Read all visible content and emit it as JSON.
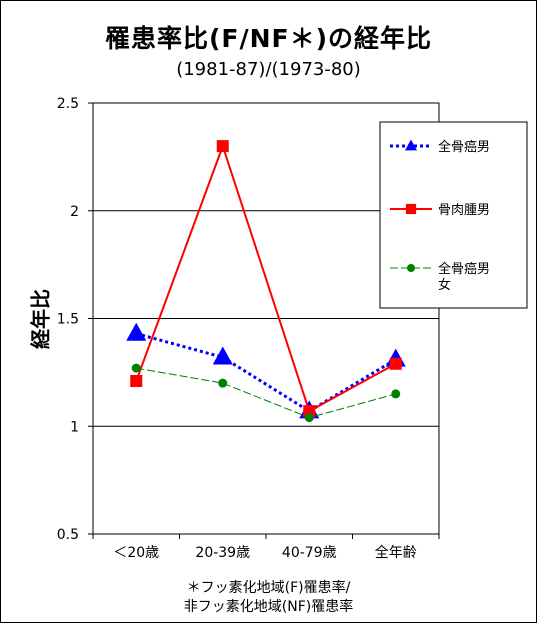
{
  "page": {
    "title": "罹患率比(F/NF＊)の経年比",
    "subtitle": "(1981-87)/(1973-80)",
    "footnote_line1": "＊フッ素化地域(F)罹患率/",
    "footnote_line2": "非フッ素化地域(NF)罹患率"
  },
  "chart_data": {
    "type": "line",
    "title": "罹患率比(F/NF＊)の経年比",
    "subtitle": "(1981-87)/(1973-80)",
    "xlabel": "",
    "ylabel": "経年比",
    "ylim": [
      0.5,
      2.5
    ],
    "yticks": [
      "0.5",
      "1",
      "1.5",
      "2",
      "2.5"
    ],
    "grid": "horizontal at 1, 1.5, 2",
    "legend_position": "top-right",
    "categories": [
      "＜20歳",
      "20-39歳",
      "40-79歳",
      "全年齢"
    ],
    "series": [
      {
        "name": "全骨癌男",
        "values": [
          1.43,
          1.32,
          1.07,
          1.31
        ],
        "color": "#0000ff",
        "line": "dotted",
        "marker": "triangle"
      },
      {
        "name": "骨肉腫男",
        "values": [
          1.21,
          2.3,
          1.07,
          1.29
        ],
        "color": "#ff0000",
        "line": "solid",
        "marker": "square"
      },
      {
        "name": "全骨癌男女",
        "values": [
          1.27,
          1.2,
          1.04,
          1.15
        ],
        "color": "#008000",
        "line": "dashed",
        "marker": "circle"
      }
    ]
  }
}
